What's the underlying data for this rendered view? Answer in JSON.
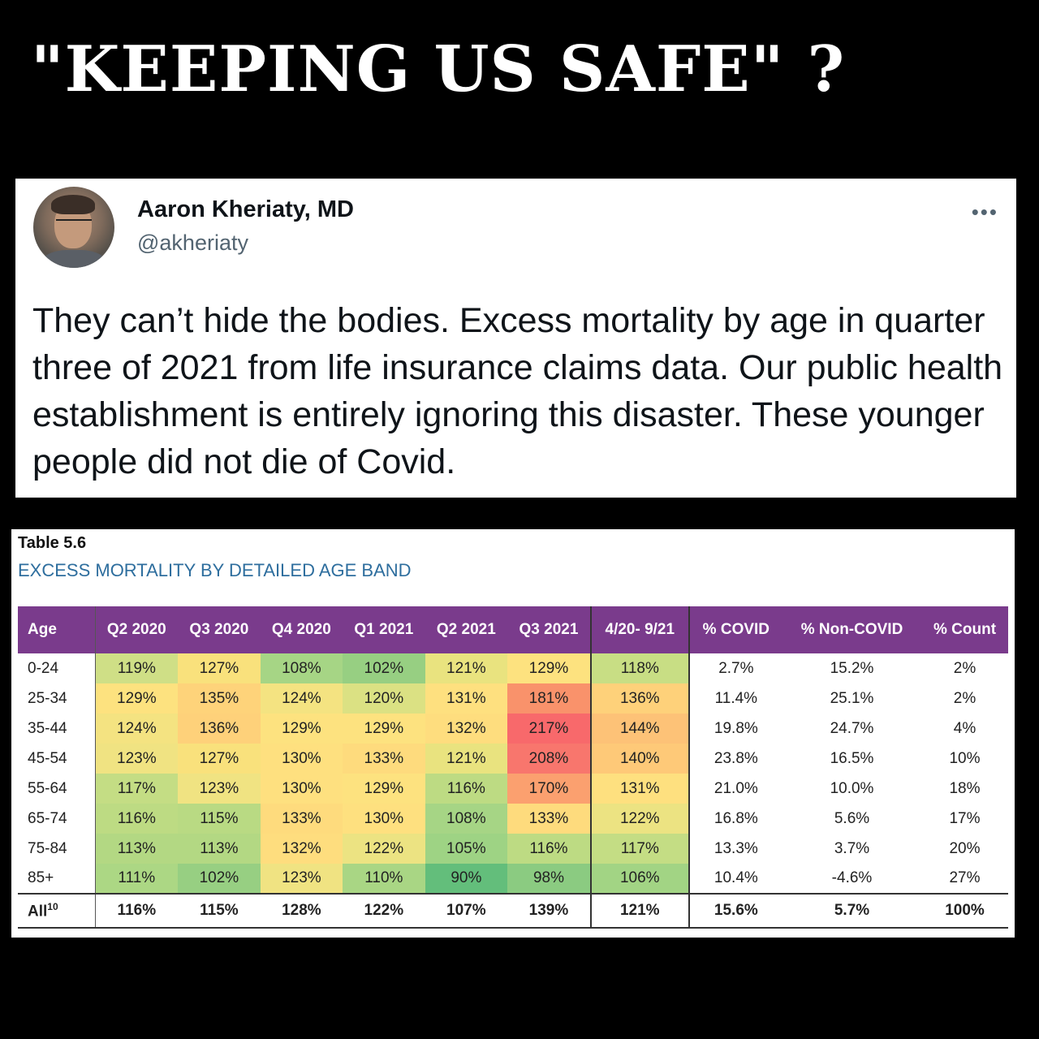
{
  "headline": "\"KEEPING US SAFE\" ?",
  "tweet": {
    "author_name": "Aaron Kheriaty, MD",
    "handle": "@akheriaty",
    "more_icon": "more-horizontal-icon",
    "text": "They can’t hide the bodies. Excess mortality by age in quarter three of 2021 from life insurance claims data. Our public health establishment is entirely ignoring this disaster. These younger people did not die of Covid."
  },
  "table": {
    "label": "Table 5.6",
    "title": "EXCESS MORTALITY BY DETAILED AGE BAND",
    "headers": [
      "Age",
      "Q2 2020",
      "Q3 2020",
      "Q4 2020",
      "Q1 2021",
      "Q2 2021",
      "Q3 2021",
      "4/20- 9/21",
      "% COVID",
      "% Non-COVID",
      "% Count"
    ],
    "rows": [
      {
        "age": "0-24",
        "values": [
          "119%",
          "127%",
          "108%",
          "102%",
          "121%",
          "129%",
          "118%"
        ],
        "colors": [
          "#cfdf86",
          "#f9e17c",
          "#a6d585",
          "#97cf82",
          "#e9e37f",
          "#fde27f",
          "#c8de84"
        ],
        "covid": "2.7%",
        "noncovid": "15.2%",
        "count": "2%"
      },
      {
        "age": "25-34",
        "values": [
          "129%",
          "135%",
          "124%",
          "120%",
          "131%",
          "181%",
          "136%"
        ],
        "colors": [
          "#fde27f",
          "#fed37a",
          "#f4e381",
          "#dbe183",
          "#fee07f",
          "#f9926b",
          "#fed17a"
        ],
        "covid": "11.4%",
        "noncovid": "25.1%",
        "count": "2%"
      },
      {
        "age": "35-44",
        "values": [
          "124%",
          "136%",
          "129%",
          "129%",
          "132%",
          "217%",
          "144%"
        ],
        "colors": [
          "#f4e381",
          "#fed17a",
          "#fde27f",
          "#fde27f",
          "#fedd7e",
          "#f8696b",
          "#fdc277"
        ],
        "covid": "19.8%",
        "noncovid": "24.7%",
        "count": "4%"
      },
      {
        "age": "45-54",
        "values": [
          "123%",
          "127%",
          "130%",
          "133%",
          "121%",
          "208%",
          "140%"
        ],
        "colors": [
          "#f0e382",
          "#f9e17c",
          "#fee07f",
          "#fedb7d",
          "#e9e37f",
          "#f8766d",
          "#fec978"
        ],
        "covid": "23.8%",
        "noncovid": "16.5%",
        "count": "10%"
      },
      {
        "age": "55-64",
        "values": [
          "117%",
          "123%",
          "130%",
          "129%",
          "116%",
          "170%",
          "131%"
        ],
        "colors": [
          "#c4dd84",
          "#f0e382",
          "#fee07f",
          "#fde27f",
          "#bddb83",
          "#fba06f",
          "#fee07f"
        ],
        "covid": "21.0%",
        "noncovid": "10.0%",
        "count": "18%"
      },
      {
        "age": "65-74",
        "values": [
          "116%",
          "115%",
          "133%",
          "130%",
          "108%",
          "133%",
          "122%"
        ],
        "colors": [
          "#bddb83",
          "#b9da83",
          "#fedb7d",
          "#fee07f",
          "#a6d585",
          "#fedb7d",
          "#ece382"
        ],
        "covid": "16.8%",
        "noncovid": "5.6%",
        "count": "17%"
      },
      {
        "age": "75-84",
        "values": [
          "113%",
          "113%",
          "132%",
          "122%",
          "105%",
          "116%",
          "117%"
        ],
        "colors": [
          "#b3d883",
          "#b3d883",
          "#fedd7e",
          "#ece382",
          "#9ed384",
          "#bddb83",
          "#c4dd84"
        ],
        "covid": "13.3%",
        "noncovid": "3.7%",
        "count": "20%"
      },
      {
        "age": "85+",
        "values": [
          "111%",
          "102%",
          "123%",
          "110%",
          "90%",
          "98%",
          "106%"
        ],
        "colors": [
          "#acd784",
          "#97cf82",
          "#f0e382",
          "#a9d684",
          "#63be7b",
          "#8bcb81",
          "#a2d484"
        ],
        "covid": "10.4%",
        "noncovid": "-4.6%",
        "count": "27%"
      }
    ],
    "total": {
      "age": "All",
      "age_sup": "10",
      "values": [
        "116%",
        "115%",
        "128%",
        "122%",
        "107%",
        "139%",
        "121%"
      ],
      "covid": "15.6%",
      "noncovid": "5.7%",
      "count": "100%"
    }
  }
}
